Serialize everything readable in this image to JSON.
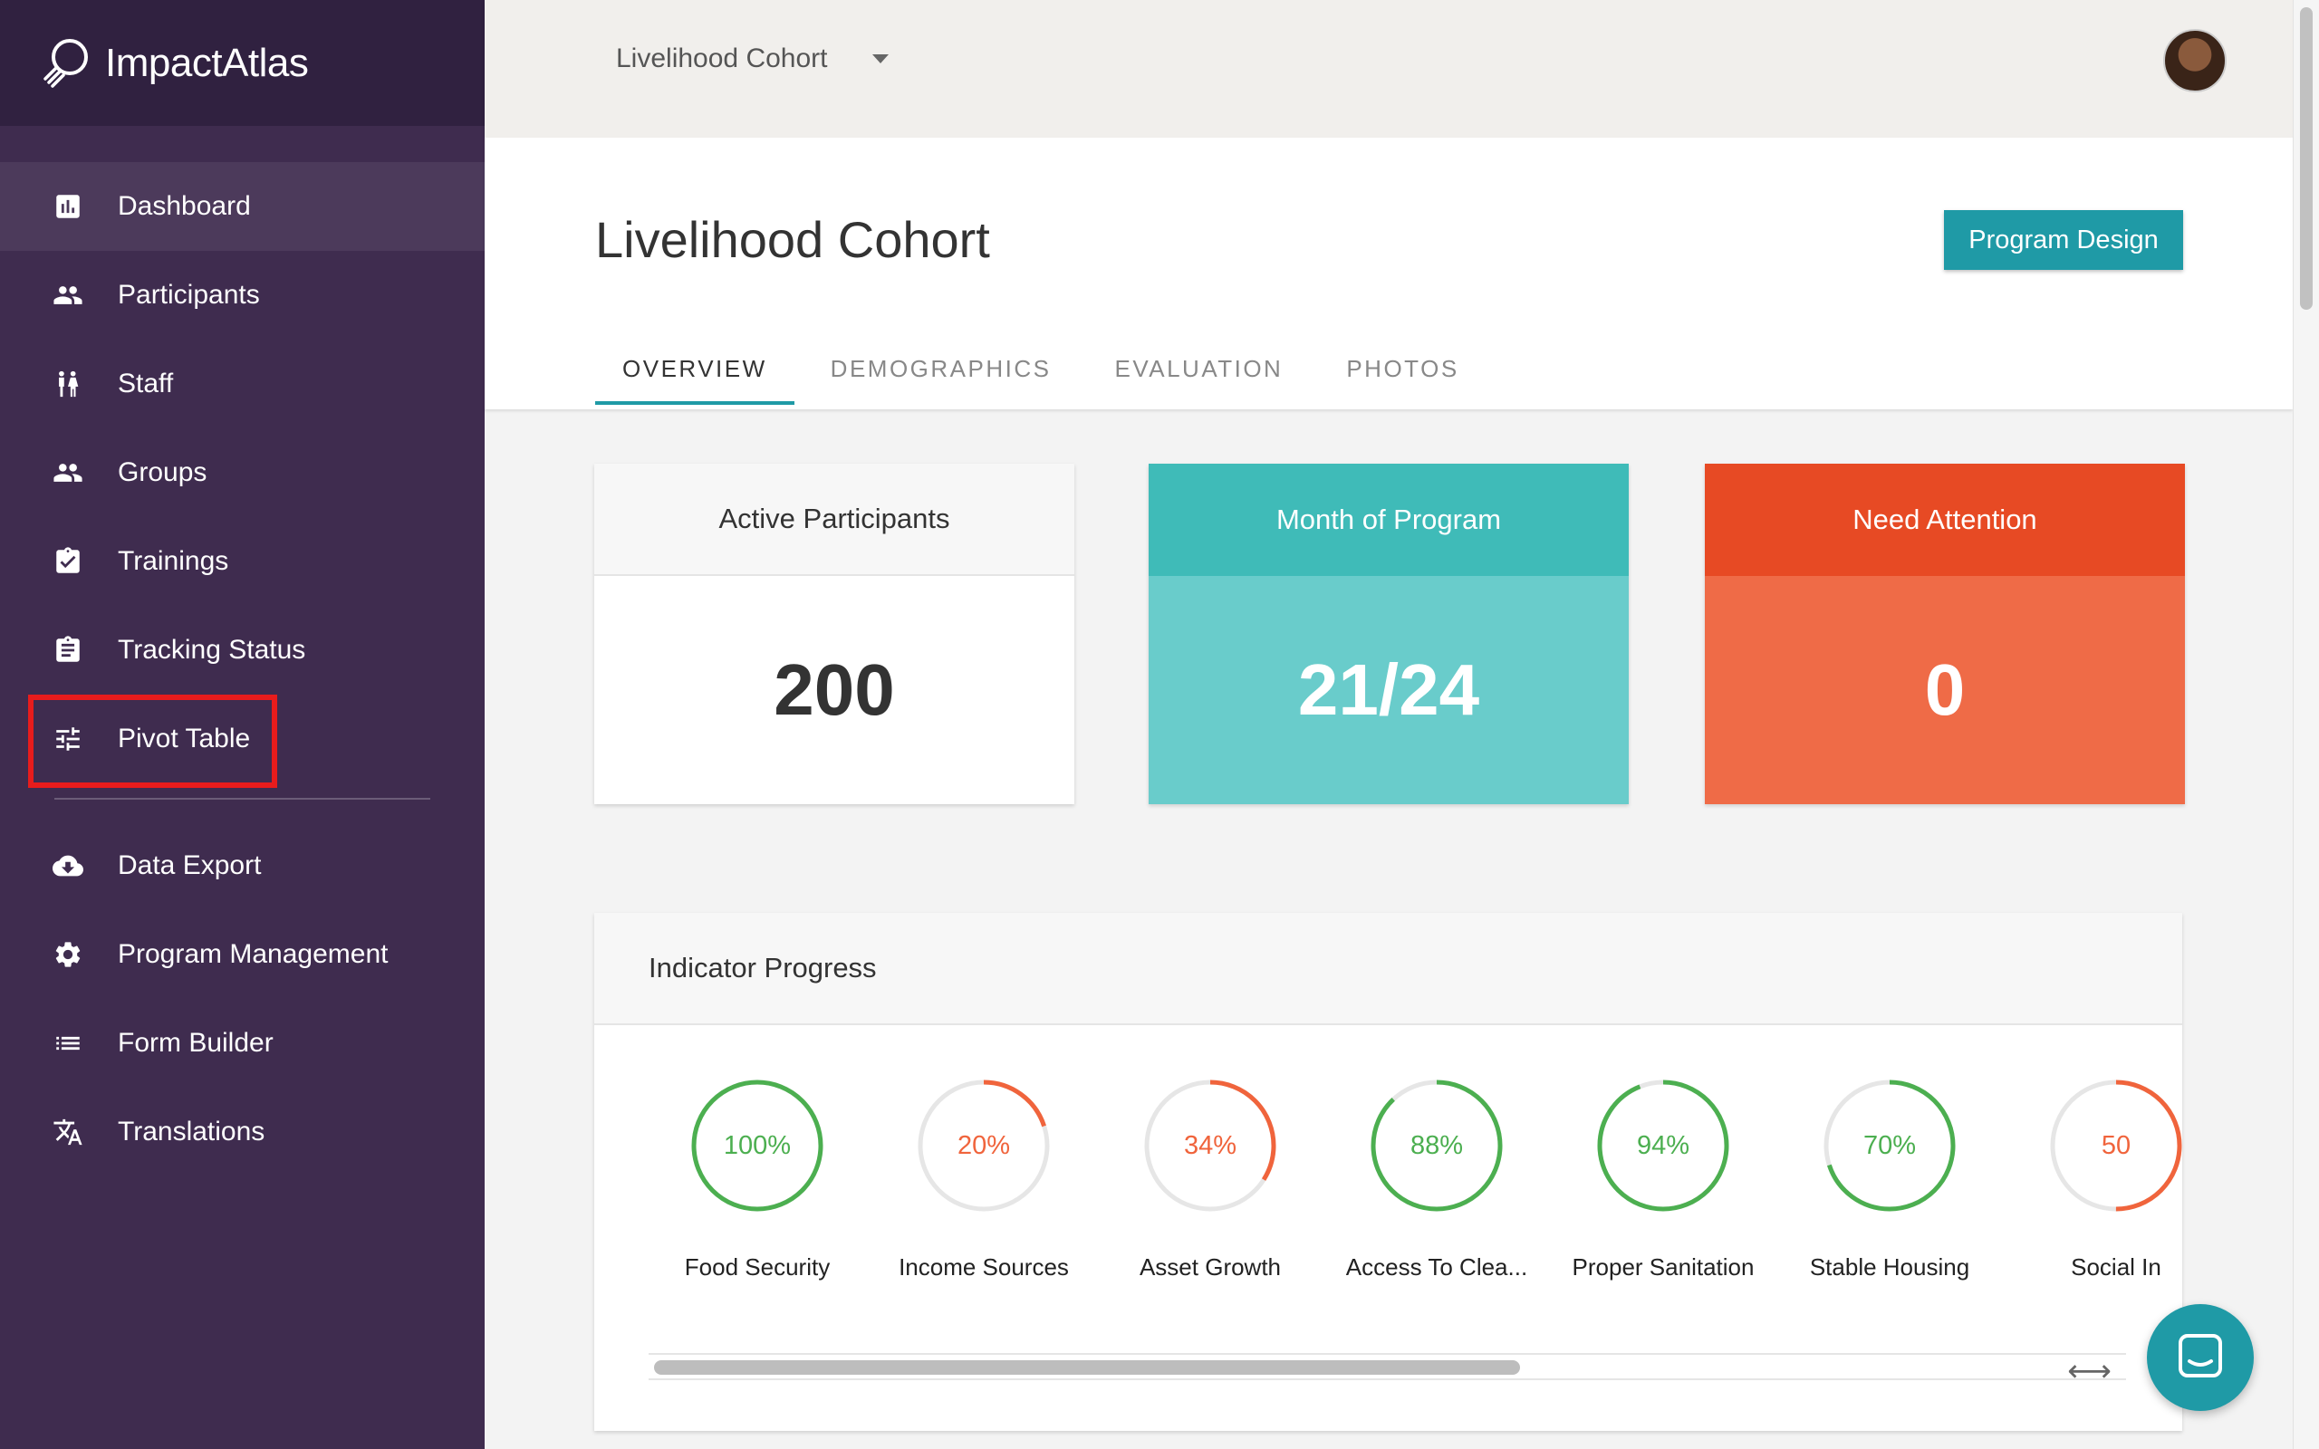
{
  "brand": {
    "name": "ImpactAtlas"
  },
  "sidebar": {
    "items": [
      {
        "label": "Dashboard",
        "icon": "dashboard-icon"
      },
      {
        "label": "Participants",
        "icon": "people-icon"
      },
      {
        "label": "Staff",
        "icon": "staff-icon"
      },
      {
        "label": "Groups",
        "icon": "groups-icon"
      },
      {
        "label": "Trainings",
        "icon": "clipboard-check-icon"
      },
      {
        "label": "Tracking Status",
        "icon": "clipboard-icon"
      },
      {
        "label": "Pivot Table",
        "icon": "tune-icon"
      }
    ],
    "secondary_items": [
      {
        "label": "Data Export",
        "icon": "cloud-download-icon"
      },
      {
        "label": "Program Management",
        "icon": "gear-icon"
      },
      {
        "label": "Form Builder",
        "icon": "list-icon"
      },
      {
        "label": "Translations",
        "icon": "translate-icon"
      }
    ],
    "active_item": "Dashboard",
    "highlighted_item": "Pivot Table"
  },
  "topbar": {
    "cohort_selected": "Livelihood Cohort"
  },
  "header": {
    "title": "Livelihood Cohort",
    "program_design_label": "Program Design",
    "tabs": [
      {
        "label": "OVERVIEW"
      },
      {
        "label": "DEMOGRAPHICS"
      },
      {
        "label": "EVALUATION"
      },
      {
        "label": "PHOTOS"
      }
    ],
    "active_tab": "OVERVIEW"
  },
  "stats": {
    "active_participants": {
      "label": "Active Participants",
      "value": "200"
    },
    "month_of_program": {
      "label": "Month of Program",
      "value": "21/24"
    },
    "need_attention": {
      "label": "Need Attention",
      "value": "0"
    }
  },
  "indicator_panel": {
    "title": "Indicator Progress",
    "indicators": [
      {
        "name": "Food Security",
        "percent_label": "100%",
        "value": 100,
        "status": "good"
      },
      {
        "name": "Income Sources",
        "percent_label": "20%",
        "value": 20,
        "status": "bad"
      },
      {
        "name": "Asset Growth",
        "percent_label": "34%",
        "value": 34,
        "status": "bad"
      },
      {
        "name": "Access To Clea...",
        "percent_label": "88%",
        "value": 88,
        "status": "good"
      },
      {
        "name": "Proper Sanitation",
        "percent_label": "94%",
        "value": 94,
        "status": "good"
      },
      {
        "name": "Stable Housing",
        "percent_label": "70%",
        "value": 70,
        "status": "good"
      },
      {
        "name": "Social In",
        "percent_label": "50",
        "value": 50,
        "status": "bad"
      }
    ]
  },
  "colors": {
    "sidebar_bg": "#3f2c4f",
    "accent_teal": "#1f9aa6",
    "good": "#4caf50",
    "bad": "#f0643c",
    "track": "#e6e6e6",
    "highlight_box": "#e81c1c"
  }
}
